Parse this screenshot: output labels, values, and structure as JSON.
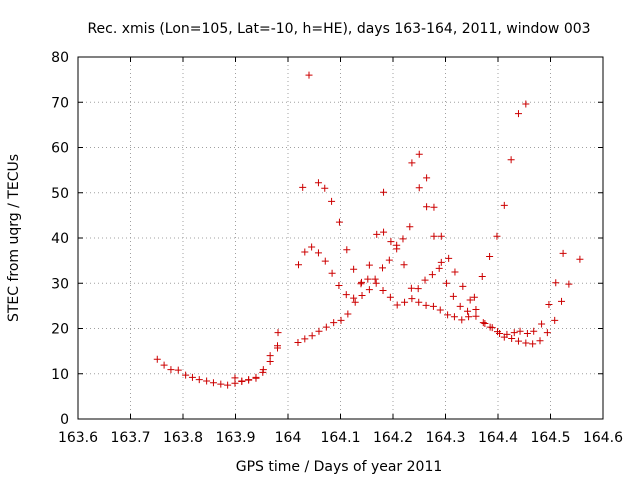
{
  "chart_data": {
    "type": "scatter",
    "title": "Rec. xmis (Lon=105, Lat=-10, h=HE), days 163-164, 2011, window 003",
    "xlabel": "GPS time / Days of year 2011",
    "ylabel": "STEC from uqrg / TECUs",
    "xlim": [
      163.6,
      164.6
    ],
    "ylim": [
      0,
      80
    ],
    "x_ticks": [
      163.6,
      163.7,
      163.8,
      163.9,
      164.0,
      164.1,
      164.2,
      164.3,
      164.4,
      164.5,
      164.6
    ],
    "x_tick_labels": [
      "163.6",
      "163.7",
      "163.8",
      "163.9",
      "164",
      "164.1",
      "164.2",
      "164.3",
      "164.4",
      "164.5",
      "164.6"
    ],
    "y_ticks": [
      0,
      10,
      20,
      30,
      40,
      50,
      60,
      70,
      80
    ],
    "y_tick_labels": [
      "0",
      "10",
      "20",
      "30",
      "40",
      "50",
      "60",
      "70",
      "80"
    ],
    "grid": true,
    "marker": "+",
    "marker_color": "#cc0000",
    "points": [
      [
        163.751,
        13.2
      ],
      [
        163.764,
        11.9
      ],
      [
        163.777,
        10.9
      ],
      [
        163.791,
        10.8
      ],
      [
        163.805,
        9.7
      ],
      [
        163.818,
        9.2
      ],
      [
        163.831,
        8.7
      ],
      [
        163.845,
        8.4
      ],
      [
        163.858,
        8.0
      ],
      [
        163.872,
        7.7
      ],
      [
        163.885,
        7.5
      ],
      [
        163.899,
        7.9
      ],
      [
        163.912,
        8.3
      ],
      [
        163.925,
        8.6
      ],
      [
        163.939,
        9.0
      ],
      [
        163.952,
        10.3
      ],
      [
        163.966,
        12.7
      ],
      [
        163.98,
        15.7
      ],
      [
        164.019,
        16.9
      ],
      [
        164.032,
        17.7
      ],
      [
        164.046,
        18.4
      ],
      [
        164.059,
        19.4
      ],
      [
        164.073,
        20.3
      ],
      [
        164.087,
        21.3
      ],
      [
        164.101,
        21.8
      ],
      [
        164.114,
        23.2
      ],
      [
        164.128,
        25.8
      ],
      [
        164.141,
        27.3
      ],
      [
        164.155,
        28.6
      ],
      [
        164.168,
        30.0
      ],
      [
        164.181,
        28.4
      ],
      [
        164.195,
        26.9
      ],
      [
        164.208,
        25.2
      ],
      [
        164.222,
        25.8
      ],
      [
        164.236,
        26.6
      ],
      [
        164.249,
        25.8
      ],
      [
        164.263,
        25.1
      ],
      [
        164.277,
        24.9
      ],
      [
        164.29,
        24.1
      ],
      [
        164.304,
        23.0
      ],
      [
        164.317,
        22.6
      ],
      [
        164.331,
        21.9
      ],
      [
        164.344,
        22.6
      ],
      [
        164.358,
        22.7
      ],
      [
        164.372,
        21.3
      ],
      [
        164.385,
        20.3
      ],
      [
        164.399,
        19.3
      ],
      [
        164.412,
        18.1
      ],
      [
        164.426,
        17.8
      ],
      [
        164.439,
        17.2
      ],
      [
        164.453,
        16.8
      ],
      [
        164.466,
        16.6
      ],
      [
        164.48,
        17.3
      ],
      [
        164.494,
        19.1
      ],
      [
        164.508,
        21.8
      ],
      [
        164.521,
        26.0
      ],
      [
        164.535,
        29.8
      ],
      [
        164.02,
        34.1
      ],
      [
        164.032,
        36.9
      ],
      [
        164.045,
        38.0
      ],
      [
        164.058,
        36.7
      ],
      [
        164.071,
        34.9
      ],
      [
        164.084,
        32.2
      ],
      [
        164.097,
        29.5
      ],
      [
        164.111,
        27.5
      ],
      [
        164.125,
        26.7
      ],
      [
        164.139,
        29.9
      ],
      [
        164.152,
        30.9
      ],
      [
        164.166,
        30.9
      ],
      [
        164.18,
        33.4
      ],
      [
        164.193,
        35.1
      ],
      [
        164.207,
        37.6
      ],
      [
        164.221,
        34.1
      ],
      [
        164.235,
        28.9
      ],
      [
        164.248,
        28.8
      ],
      [
        164.261,
        30.7
      ],
      [
        164.275,
        31.9
      ],
      [
        164.288,
        33.3
      ],
      [
        164.302,
        30.0
      ],
      [
        164.315,
        27.1
      ],
      [
        164.328,
        24.9
      ],
      [
        164.342,
        23.8
      ],
      [
        164.355,
        26.9
      ],
      [
        164.37,
        31.5
      ],
      [
        164.384,
        35.9
      ],
      [
        164.398,
        40.4
      ],
      [
        164.412,
        47.2
      ],
      [
        164.425,
        57.3
      ],
      [
        164.439,
        67.5
      ],
      [
        164.453,
        69.6
      ],
      [
        164.028,
        51.2
      ],
      [
        164.04,
        76.0
      ],
      [
        164.058,
        52.2
      ],
      [
        164.07,
        51.0
      ],
      [
        164.083,
        48.1
      ],
      [
        164.098,
        43.5
      ],
      [
        164.112,
        37.4
      ],
      [
        164.125,
        33.1
      ],
      [
        164.14,
        30.2
      ],
      [
        164.155,
        34.0
      ],
      [
        164.169,
        40.8
      ],
      [
        164.182,
        41.3
      ],
      [
        164.196,
        39.2
      ],
      [
        164.207,
        38.4
      ],
      [
        164.219,
        39.8
      ],
      [
        164.232,
        42.5
      ],
      [
        164.236,
        56.6
      ],
      [
        164.25,
        58.5
      ],
      [
        164.25,
        51.1
      ],
      [
        164.264,
        53.3
      ],
      [
        164.264,
        46.9
      ],
      [
        164.278,
        46.8
      ],
      [
        164.278,
        40.4
      ],
      [
        164.292,
        40.4
      ],
      [
        164.292,
        34.6
      ],
      [
        164.306,
        35.5
      ],
      [
        164.318,
        32.5
      ],
      [
        164.333,
        29.3
      ],
      [
        164.347,
        26.3
      ],
      [
        164.358,
        24.2
      ],
      [
        164.375,
        21.1
      ],
      [
        164.389,
        20.2
      ],
      [
        164.403,
        18.9
      ],
      [
        164.417,
        18.7
      ],
      [
        164.431,
        19.1
      ],
      [
        164.442,
        19.4
      ],
      [
        164.456,
        18.9
      ],
      [
        164.468,
        19.4
      ],
      [
        164.483,
        21.0
      ],
      [
        164.497,
        25.3
      ],
      [
        164.51,
        30.1
      ],
      [
        164.524,
        36.6
      ],
      [
        164.556,
        35.3
      ],
      [
        164.182,
        50.1
      ],
      [
        163.981,
        19.1
      ],
      [
        163.98,
        16.2
      ],
      [
        163.966,
        14.0
      ],
      [
        163.953,
        10.9
      ],
      [
        163.939,
        9.2
      ],
      [
        163.925,
        8.7
      ],
      [
        163.912,
        8.4
      ],
      [
        163.899,
        9.1
      ]
    ]
  }
}
